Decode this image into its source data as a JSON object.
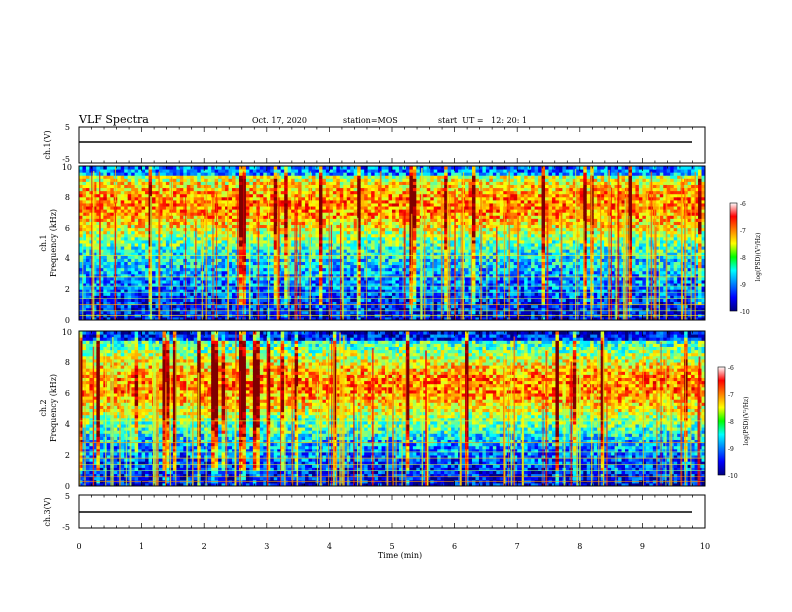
{
  "header": {
    "title": "VLF Spectra",
    "date": "Oct. 17, 2020",
    "station": "station=MOS",
    "start": "start  UT =   12: 20: 1"
  },
  "chart_data": [
    {
      "type": "line",
      "panel": "ch1-waveform",
      "ylabel": "ch.1(V)",
      "ylim": [
        -5,
        5
      ],
      "yticks": [
        "5",
        "-5"
      ],
      "y_level": 0,
      "xlim": [
        0,
        10
      ]
    },
    {
      "type": "heatmap",
      "panel": "ch1-spectrogram",
      "ylabel_channel": "ch.1",
      "ylabel": "Frequency (kHz)",
      "ylim": [
        0,
        10
      ],
      "yticks": [
        "0",
        "2",
        "4",
        "6",
        "8",
        "10"
      ],
      "xlim": [
        0,
        10
      ],
      "colorbar": {
        "label": "log(PSD)(V²/Hz)",
        "range": [
          -10,
          -6
        ],
        "ticks": [
          "-6",
          "-7",
          "-8",
          "-9",
          "-10"
        ]
      },
      "band_center_khz": 7.5,
      "band_width_khz": 2.5
    },
    {
      "type": "heatmap",
      "panel": "ch2-spectrogram",
      "ylabel_channel": "ch.2",
      "ylabel": "Frequency (kHz)",
      "ylim": [
        0,
        10
      ],
      "yticks": [
        "0",
        "2",
        "4",
        "6",
        "8",
        "10"
      ],
      "xlim": [
        0,
        10
      ],
      "colorbar": {
        "label": "log(PSD)(V²/Hz)",
        "range": [
          -10,
          -6
        ],
        "ticks": [
          "-6",
          "-7",
          "-8",
          "-9",
          "-10"
        ]
      },
      "band_center_khz": 6.5,
      "band_width_khz": 2.5
    },
    {
      "type": "line",
      "panel": "ch3-waveform",
      "ylabel": "ch.3(V)",
      "ylim": [
        -5,
        5
      ],
      "yticks": [
        "5",
        "-5"
      ],
      "y_level": 0,
      "xlim": [
        0,
        10
      ],
      "xlabel": "Time (min)",
      "xticks": [
        "0",
        "1",
        "2",
        "3",
        "4",
        "5",
        "6",
        "7",
        "8",
        "9",
        "10"
      ]
    }
  ]
}
